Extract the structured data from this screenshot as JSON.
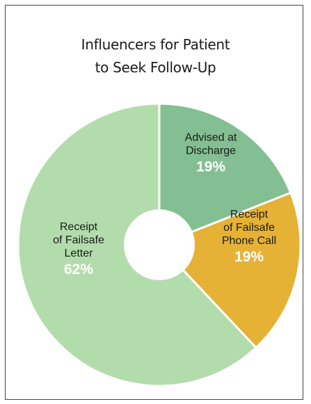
{
  "chart_data": {
    "type": "pie",
    "title_lines": [
      "Influencers for Patient",
      "to Seek Follow-Up"
    ],
    "slices": [
      {
        "label_lines": [
          "Advised at",
          "Discharge"
        ],
        "percent_label": "19%",
        "value": 19,
        "color": "#83bf92"
      },
      {
        "label_lines": [
          "Receipt",
          "of Failsafe",
          "Phone Call"
        ],
        "percent_label": "19%",
        "value": 19,
        "color": "#e6b236"
      },
      {
        "label_lines": [
          "Receipt",
          "of Failsafe",
          "Letter"
        ],
        "percent_label": "62%",
        "value": 62,
        "color": "#b3dcac"
      }
    ],
    "donut": true
  }
}
